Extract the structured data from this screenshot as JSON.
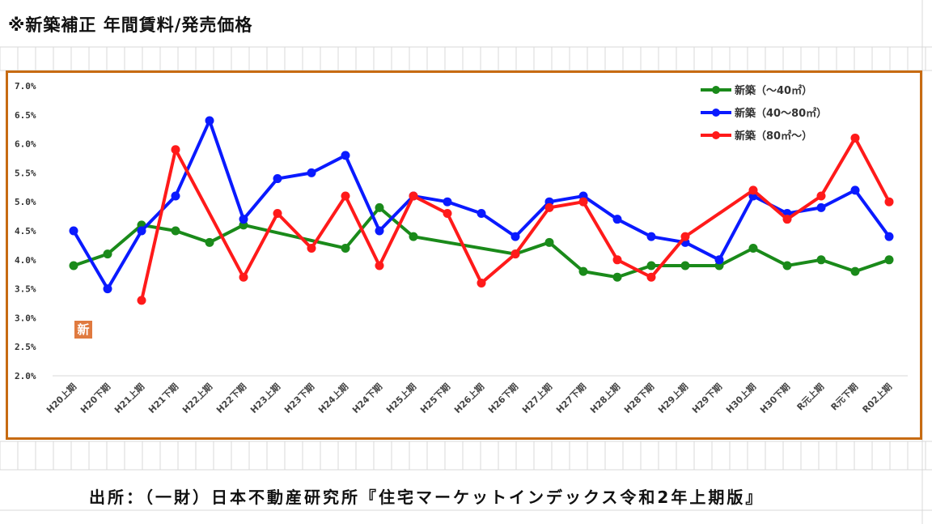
{
  "title": "※新築補正 年間賃料/発売価格",
  "source": "出所：（一財）日本不動産研究所『住宅マーケットインデックス令和2年上期版』",
  "badge": "新",
  "chart_data": {
    "type": "line",
    "title": "",
    "xlabel": "",
    "ylabel": "",
    "ylim": [
      2.0,
      7.0
    ],
    "yticks": [
      "2.0%",
      "2.5%",
      "3.0%",
      "3.5%",
      "4.0%",
      "4.5%",
      "5.0%",
      "5.5%",
      "6.0%",
      "6.5%",
      "7.0%"
    ],
    "categories": [
      "H20上期",
      "H20下期",
      "H21上期",
      "H21下期",
      "H22上期",
      "H22下期",
      "H23上期",
      "H23下期",
      "H24上期",
      "H24下期",
      "H25上期",
      "H25下期",
      "H26上期",
      "H26下期",
      "H27上期",
      "H27下期",
      "H28上期",
      "H28下期",
      "H29上期",
      "H29下期",
      "H30上期",
      "H30下期",
      "R元上期",
      "R元下期",
      "R02上期"
    ],
    "legend_position": "top-right",
    "grid": false,
    "series": [
      {
        "name": "新築（～40㎡）",
        "color": "#1a8a1a",
        "values": [
          3.9,
          4.1,
          4.6,
          4.5,
          4.3,
          4.6,
          null,
          null,
          4.2,
          4.9,
          4.4,
          null,
          null,
          4.1,
          4.3,
          3.8,
          3.7,
          3.9,
          3.9,
          3.9,
          4.2,
          3.9,
          4.0,
          3.8,
          4.0
        ]
      },
      {
        "name": "新築（40～80㎡）",
        "color": "#0a1aff",
        "values": [
          4.5,
          3.5,
          4.5,
          5.1,
          6.4,
          4.7,
          5.4,
          5.5,
          5.8,
          4.5,
          5.1,
          5.0,
          4.8,
          4.4,
          5.0,
          5.1,
          4.7,
          4.4,
          4.3,
          4.0,
          5.1,
          4.8,
          4.9,
          5.2,
          4.4
        ]
      },
      {
        "name": "新築（80㎡～）",
        "color": "#ff1a1a",
        "values": [
          null,
          null,
          3.3,
          5.9,
          null,
          3.7,
          4.8,
          4.2,
          5.1,
          3.9,
          5.1,
          4.8,
          3.6,
          4.1,
          4.9,
          5.0,
          4.0,
          3.7,
          4.4,
          null,
          5.2,
          4.7,
          5.1,
          6.1,
          5.0
        ]
      }
    ]
  }
}
